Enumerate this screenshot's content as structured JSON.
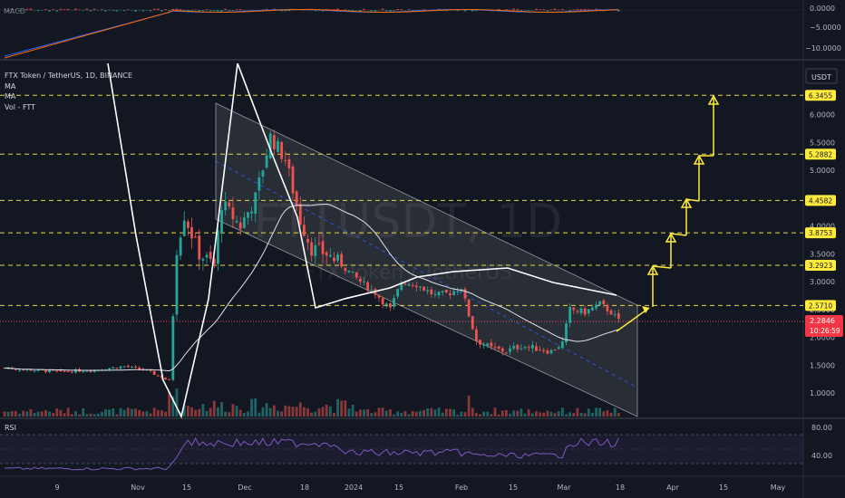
{
  "header": {
    "symbol_line": "FTX Token / TetherUS, 1D, BINANCE",
    "indicators": [
      "MA",
      "MA",
      "Vol - FTT"
    ]
  },
  "watermark": {
    "big": "FTTUSDT, 1D",
    "small": "FTX Token / TetherUS"
  },
  "currency_label": "USDT",
  "macd_pane": {
    "name": "MACD",
    "ticks": [
      "0.0000",
      "−5.0000",
      "−10.0000"
    ]
  },
  "rsi_pane": {
    "name": "RSI",
    "ticks": [
      "80.00",
      "40.00"
    ]
  },
  "price_axis_ticks": [
    "6.0000",
    "5.5000",
    "5.0000",
    "4.5000",
    "4.0000",
    "3.5000",
    "3.0000",
    "2.5000",
    "2.0000",
    "1.5000",
    "1.0000"
  ],
  "level_badges": [
    "6.3455",
    "5.2882",
    "4.4582",
    "3.8753",
    "3.2923",
    "2.5710"
  ],
  "last_price": {
    "price": "2.2846",
    "countdown": "10:26:59"
  },
  "time_axis": [
    "9",
    "Nov",
    "15",
    "Dec",
    "18",
    "2024",
    "15",
    "Feb",
    "15",
    "Mar",
    "18",
    "Apr",
    "15",
    "May"
  ],
  "colors": {
    "background": "#131722",
    "up": "#26a69a",
    "down": "#ef5350",
    "level_line": "#e8d84a",
    "arrow": "#ffeb3b",
    "channel_fill": "#3d3f45",
    "badge": "#ffeb3b",
    "last_price_badge": "#f23645",
    "rsi_line": "#7e57c2",
    "macd_line": "#2962ff",
    "signal_line": "#ff6d00"
  },
  "chart_data": {
    "type": "candlestick",
    "symbol": "FTX Token / TetherUS",
    "interval": "1D",
    "exchange": "BINANCE",
    "price_axis": {
      "min": 1.0,
      "max": 6.0,
      "currency": "USDT"
    },
    "horizontal_levels": [
      6.3455,
      5.2882,
      4.4582,
      3.8753,
      3.2923,
      2.571
    ],
    "last_price": 2.2846,
    "price_path_approx": [
      {
        "date": "Oct 2023 (9)",
        "price": 1.45
      },
      {
        "date": "Nov",
        "price": 1.4
      },
      {
        "date": "early Nov",
        "price": 1.25
      },
      {
        "date": "Nov 15",
        "price": 4.0
      },
      {
        "date": "late Nov",
        "price": 3.4
      },
      {
        "date": "Dec",
        "price": 4.4
      },
      {
        "date": "Dec 10",
        "price": 5.5
      },
      {
        "date": "Dec 18",
        "price": 3.6
      },
      {
        "date": "2024",
        "price": 2.8
      },
      {
        "date": "Jan 15",
        "price": 2.9
      },
      {
        "date": "Feb",
        "price": 1.8
      },
      {
        "date": "Feb 15",
        "price": 1.75
      },
      {
        "date": "Mar",
        "price": 2.5
      },
      {
        "date": "Mar 12",
        "price": 2.2846
      }
    ],
    "projected_targets": [
      2.571,
      3.2923,
      3.8753,
      4.4582,
      5.2882,
      6.3455
    ],
    "rsi": {
      "levels": [
        80,
        40
      ],
      "last_approx": 50
    },
    "macd": {
      "levels": [
        0,
        -5,
        -10
      ]
    }
  }
}
